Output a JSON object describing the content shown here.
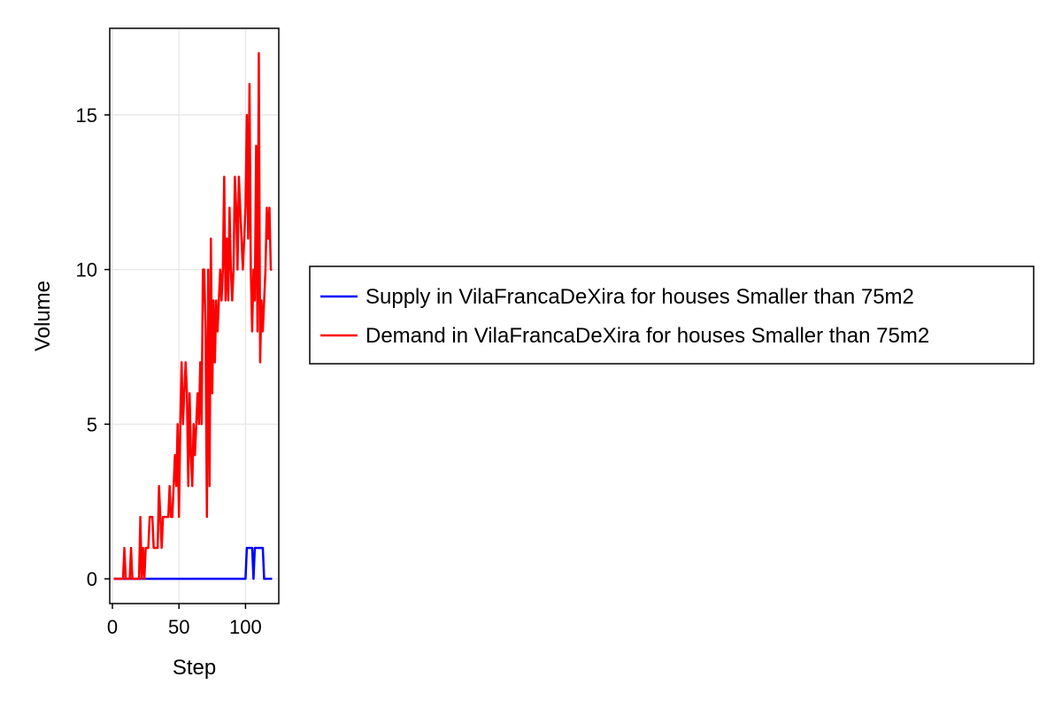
{
  "chart_data": {
    "type": "line",
    "xlabel": "Step",
    "ylabel": "Volume",
    "xlim": [
      -2,
      125
    ],
    "ylim": [
      -0.8,
      17.8
    ],
    "xticks": [
      0,
      50,
      100
    ],
    "yticks": [
      0,
      5,
      10,
      15
    ],
    "grid": true,
    "legend_position": "right",
    "series": [
      {
        "name": "Supply in VilaFrancaDeXira for houses Smaller than 75m2",
        "color": "#0000ff",
        "x": [
          1,
          2,
          3,
          4,
          5,
          6,
          7,
          8,
          9,
          10,
          11,
          12,
          13,
          14,
          15,
          16,
          17,
          18,
          19,
          20,
          21,
          22,
          23,
          24,
          25,
          26,
          27,
          28,
          29,
          30,
          31,
          32,
          33,
          34,
          35,
          36,
          37,
          38,
          39,
          40,
          41,
          42,
          43,
          44,
          45,
          46,
          47,
          48,
          49,
          50,
          51,
          52,
          53,
          54,
          55,
          56,
          57,
          58,
          59,
          60,
          61,
          62,
          63,
          64,
          65,
          66,
          67,
          68,
          69,
          70,
          71,
          72,
          73,
          74,
          75,
          76,
          77,
          78,
          79,
          80,
          81,
          82,
          83,
          84,
          85,
          86,
          87,
          88,
          89,
          90,
          91,
          92,
          93,
          94,
          95,
          96,
          97,
          98,
          99,
          100,
          101,
          102,
          103,
          104,
          105,
          106,
          107,
          108,
          109,
          110,
          111,
          112,
          113,
          114,
          115,
          116,
          117,
          118,
          119,
          120
        ],
        "y": [
          0,
          0,
          0,
          0,
          0,
          0,
          0,
          0,
          0,
          0,
          0,
          0,
          0,
          0,
          0,
          0,
          0,
          0,
          0,
          0,
          0,
          0,
          0,
          0,
          0,
          0,
          0,
          0,
          0,
          0,
          0,
          0,
          0,
          0,
          0,
          0,
          0,
          0,
          0,
          0,
          0,
          0,
          0,
          0,
          0,
          0,
          0,
          0,
          0,
          0,
          0,
          0,
          0,
          0,
          0,
          0,
          0,
          0,
          0,
          0,
          0,
          0,
          0,
          0,
          0,
          0,
          0,
          0,
          0,
          0,
          0,
          0,
          0,
          0,
          0,
          0,
          0,
          0,
          0,
          0,
          0,
          0,
          0,
          0,
          0,
          0,
          0,
          0,
          0,
          0,
          0,
          0,
          0,
          0,
          0,
          0,
          0,
          0,
          0,
          0,
          1,
          1,
          1,
          1,
          1,
          0,
          1,
          1,
          1,
          1,
          1,
          1,
          1,
          0,
          0,
          0,
          0,
          0,
          0,
          0
        ]
      },
      {
        "name": "Demand in VilaFrancaDeXira for houses Smaller than 75m2",
        "color": "#ff0000",
        "x": [
          1,
          2,
          3,
          4,
          5,
          6,
          7,
          8,
          9,
          10,
          11,
          12,
          13,
          14,
          15,
          16,
          17,
          18,
          19,
          20,
          21,
          22,
          23,
          24,
          25,
          26,
          27,
          28,
          29,
          30,
          31,
          32,
          33,
          34,
          35,
          36,
          37,
          38,
          39,
          40,
          41,
          42,
          43,
          44,
          45,
          46,
          47,
          48,
          49,
          50,
          51,
          52,
          53,
          54,
          55,
          56,
          57,
          58,
          59,
          60,
          61,
          62,
          63,
          64,
          65,
          66,
          67,
          68,
          69,
          70,
          71,
          72,
          73,
          74,
          75,
          76,
          77,
          78,
          79,
          80,
          81,
          82,
          83,
          84,
          85,
          86,
          87,
          88,
          89,
          90,
          91,
          92,
          93,
          94,
          95,
          96,
          97,
          98,
          99,
          100,
          101,
          102,
          103,
          104,
          105,
          106,
          107,
          108,
          109,
          110,
          111,
          112,
          113,
          114,
          115,
          116,
          117,
          118,
          119,
          120
        ],
        "y": [
          0,
          0,
          0,
          0,
          0,
          0,
          0,
          0,
          1,
          0,
          0,
          0,
          0,
          1,
          0,
          0,
          0,
          0,
          0,
          0,
          2,
          0,
          1,
          0,
          1,
          1,
          1,
          2,
          2,
          2,
          1,
          1,
          1,
          1,
          3,
          2,
          1,
          2,
          2,
          2,
          2,
          2,
          3,
          2,
          2,
          3,
          4,
          3,
          5,
          2,
          5,
          7,
          5,
          6,
          7,
          6,
          3,
          6,
          4,
          3,
          5,
          4,
          5,
          6,
          5,
          7,
          5,
          10,
          10,
          8,
          2,
          10,
          3,
          11,
          6,
          9,
          7,
          9,
          8,
          9,
          10,
          9,
          10,
          13,
          9,
          11,
          9,
          12,
          10,
          9,
          10,
          13,
          12,
          10,
          13,
          12,
          11,
          10,
          11,
          12,
          15,
          11,
          16,
          10,
          8,
          10,
          9,
          14,
          8,
          17,
          7,
          9,
          8,
          9,
          10,
          12,
          11,
          12,
          10,
          10
        ]
      }
    ]
  }
}
